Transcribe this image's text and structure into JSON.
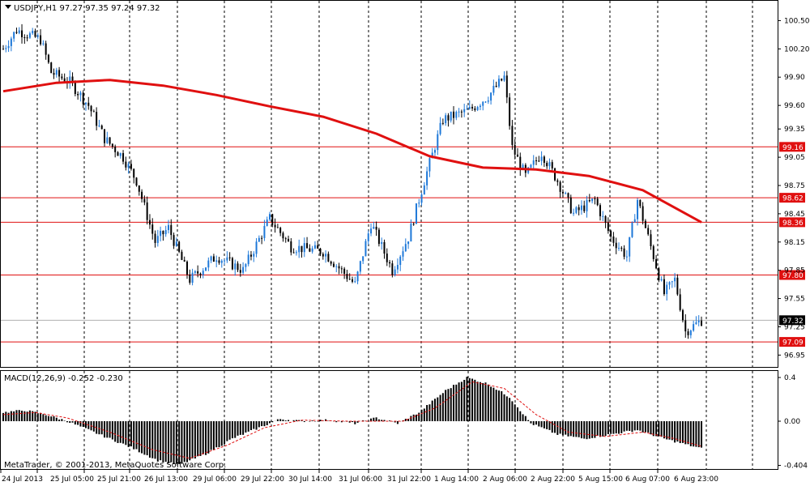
{
  "symbol_header": "USDJPY,H1  97.27 97.35 97.24 97.32",
  "macd_header": "MACD(12,26,9) -0.252 -0.230",
  "copyright": "MetaTrader, © 2001-2013, MetaQuotes Software Corp.",
  "colors": {
    "background": "#ffffff",
    "bull": "#1e78d8",
    "bear": "#000000",
    "ma": "#e01010",
    "level": "#e01010",
    "grid": "#000000",
    "signal": "#e01010"
  },
  "chart_data": [
    {
      "type": "candlestick",
      "title": "USDJPY,H1",
      "ohlc_last": {
        "open": 97.27,
        "high": 97.35,
        "low": 97.24,
        "close": 97.32
      },
      "ylim": [
        96.85,
        100.65
      ],
      "y_ticks": [
        "100.50",
        "100.20",
        "99.90",
        "99.60",
        "99.35",
        "99.05",
        "98.75",
        "98.45",
        "98.15",
        "97.85",
        "97.55",
        "97.25",
        "96.95"
      ],
      "x_ticks": [
        "24 Jul 2013",
        "25 Jul 05:00",
        "25 Jul 21:00",
        "26 Jul 13:00",
        "29 Jul 06:00",
        "29 Jul 22:00",
        "30 Jul 14:00",
        "31 Jul 06:00",
        "31 Jul 22:00",
        "1 Aug 14:00",
        "2 Aug 06:00",
        "2 Aug 22:00",
        "5 Aug 15:00",
        "6 Aug 07:00",
        "6 Aug 23:00"
      ],
      "horizontal_levels": [
        "99.16",
        "98.62",
        "98.36",
        "97.80",
        "97.09"
      ],
      "current_price": "97.32",
      "moving_average": [
        {
          "i": 0,
          "v": 99.75
        },
        {
          "i": 20,
          "v": 99.84
        },
        {
          "i": 40,
          "v": 99.87
        },
        {
          "i": 60,
          "v": 99.81
        },
        {
          "i": 80,
          "v": 99.71
        },
        {
          "i": 100,
          "v": 99.59
        },
        {
          "i": 120,
          "v": 99.48
        },
        {
          "i": 140,
          "v": 99.3
        },
        {
          "i": 160,
          "v": 99.06
        },
        {
          "i": 180,
          "v": 98.94
        },
        {
          "i": 200,
          "v": 98.92
        },
        {
          "i": 220,
          "v": 98.85
        },
        {
          "i": 240,
          "v": 98.7
        },
        {
          "i": 262,
          "v": 98.36
        }
      ],
      "price_path": [
        {
          "i": 0,
          "v": 100.2
        },
        {
          "i": 5,
          "v": 100.4
        },
        {
          "i": 14,
          "v": 100.3
        },
        {
          "i": 18,
          "v": 99.95
        },
        {
          "i": 25,
          "v": 99.85
        },
        {
          "i": 32,
          "v": 99.6
        },
        {
          "i": 38,
          "v": 99.25
        },
        {
          "i": 45,
          "v": 99.05
        },
        {
          "i": 50,
          "v": 98.8
        },
        {
          "i": 57,
          "v": 98.15
        },
        {
          "i": 62,
          "v": 98.3
        },
        {
          "i": 70,
          "v": 97.75
        },
        {
          "i": 80,
          "v": 98.0
        },
        {
          "i": 90,
          "v": 97.85
        },
        {
          "i": 100,
          "v": 98.4
        },
        {
          "i": 108,
          "v": 98.1
        },
        {
          "i": 120,
          "v": 98.05
        },
        {
          "i": 132,
          "v": 97.7
        },
        {
          "i": 138,
          "v": 98.35
        },
        {
          "i": 146,
          "v": 97.85
        },
        {
          "i": 152,
          "v": 98.2
        },
        {
          "i": 158,
          "v": 98.8
        },
        {
          "i": 165,
          "v": 99.45
        },
        {
          "i": 175,
          "v": 99.55
        },
        {
          "i": 182,
          "v": 99.7
        },
        {
          "i": 188,
          "v": 99.9
        },
        {
          "i": 191,
          "v": 99.15
        },
        {
          "i": 196,
          "v": 98.85
        },
        {
          "i": 202,
          "v": 99.1
        },
        {
          "i": 208,
          "v": 98.8
        },
        {
          "i": 214,
          "v": 98.45
        },
        {
          "i": 222,
          "v": 98.6
        },
        {
          "i": 228,
          "v": 98.2
        },
        {
          "i": 234,
          "v": 98.0
        },
        {
          "i": 238,
          "v": 98.6
        },
        {
          "i": 244,
          "v": 98.0
        },
        {
          "i": 248,
          "v": 97.6
        },
        {
          "i": 252,
          "v": 97.75
        },
        {
          "i": 256,
          "v": 97.2
        },
        {
          "i": 262,
          "v": 97.32
        }
      ]
    },
    {
      "type": "histogram",
      "title": "MACD(12,26,9)",
      "ylim": [
        -0.43,
        0.43
      ],
      "y_ticks": [
        "0.4",
        "0.00",
        "-0.404"
      ],
      "macd_path": [
        {
          "i": 0,
          "v": 0.08
        },
        {
          "i": 8,
          "v": 0.1
        },
        {
          "i": 16,
          "v": 0.06
        },
        {
          "i": 24,
          "v": 0.0
        },
        {
          "i": 36,
          "v": -0.12
        },
        {
          "i": 48,
          "v": -0.24
        },
        {
          "i": 58,
          "v": -0.36
        },
        {
          "i": 66,
          "v": -0.4
        },
        {
          "i": 76,
          "v": -0.3
        },
        {
          "i": 86,
          "v": -0.16
        },
        {
          "i": 96,
          "v": -0.06
        },
        {
          "i": 104,
          "v": 0.02
        },
        {
          "i": 112,
          "v": 0.0
        },
        {
          "i": 122,
          "v": 0.01
        },
        {
          "i": 132,
          "v": -0.02
        },
        {
          "i": 140,
          "v": 0.03
        },
        {
          "i": 148,
          "v": -0.02
        },
        {
          "i": 156,
          "v": 0.08
        },
        {
          "i": 166,
          "v": 0.28
        },
        {
          "i": 174,
          "v": 0.4
        },
        {
          "i": 182,
          "v": 0.34
        },
        {
          "i": 190,
          "v": 0.22
        },
        {
          "i": 198,
          "v": -0.02
        },
        {
          "i": 208,
          "v": -0.12
        },
        {
          "i": 218,
          "v": -0.16
        },
        {
          "i": 228,
          "v": -0.12
        },
        {
          "i": 238,
          "v": -0.08
        },
        {
          "i": 248,
          "v": -0.16
        },
        {
          "i": 262,
          "v": -0.25
        }
      ],
      "signal_path": [
        {
          "i": 0,
          "v": 0.06
        },
        {
          "i": 12,
          "v": 0.08
        },
        {
          "i": 24,
          "v": 0.03
        },
        {
          "i": 40,
          "v": -0.1
        },
        {
          "i": 56,
          "v": -0.26
        },
        {
          "i": 70,
          "v": -0.34
        },
        {
          "i": 84,
          "v": -0.22
        },
        {
          "i": 98,
          "v": -0.06
        },
        {
          "i": 112,
          "v": 0.01
        },
        {
          "i": 130,
          "v": 0.0
        },
        {
          "i": 150,
          "v": 0.0
        },
        {
          "i": 162,
          "v": 0.12
        },
        {
          "i": 176,
          "v": 0.36
        },
        {
          "i": 188,
          "v": 0.3
        },
        {
          "i": 200,
          "v": 0.06
        },
        {
          "i": 212,
          "v": -0.1
        },
        {
          "i": 226,
          "v": -0.14
        },
        {
          "i": 240,
          "v": -0.1
        },
        {
          "i": 252,
          "v": -0.16
        },
        {
          "i": 262,
          "v": -0.23
        }
      ]
    }
  ]
}
